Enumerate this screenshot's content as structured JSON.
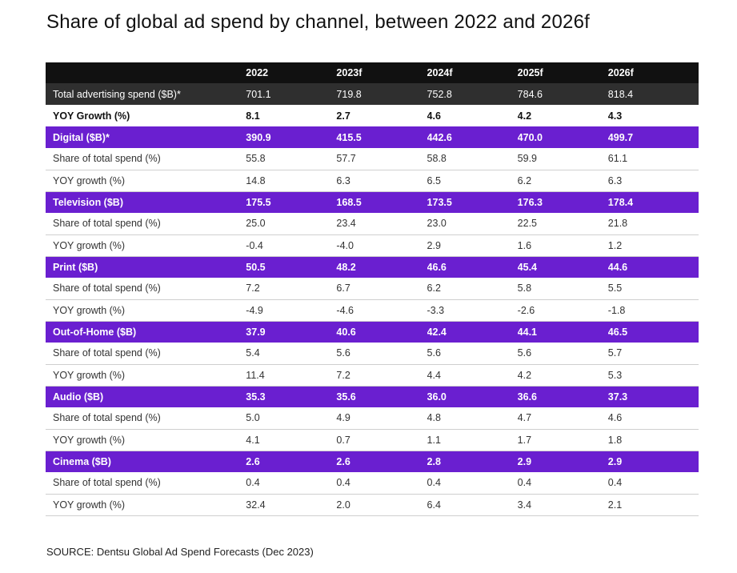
{
  "title": "Share of global ad spend by channel, between 2022 and 2026f",
  "source": "SOURCE: Dentsu Global Ad Spend Forecasts (Dec 2023)",
  "colors": {
    "header": "#111111",
    "total_row": "#2f2f2f",
    "channel_row": "#6a1fd0"
  },
  "chart_data": {
    "type": "table",
    "title": "Share of global ad spend by channel, between 2022 and 2026f",
    "columns": [
      "",
      "2022",
      "2023f",
      "2024f",
      "2025f",
      "2026f"
    ],
    "rows": [
      {
        "kind": "total",
        "label": "Total advertising spend ($B)*",
        "values": [
          "701.1",
          "719.8",
          "752.8",
          "784.6",
          "818.4"
        ]
      },
      {
        "kind": "yoy-total",
        "label": "YOY Growth (%)",
        "values": [
          "8.1",
          "2.7",
          "4.6",
          "4.2",
          "4.3"
        ]
      },
      {
        "kind": "channel",
        "label": "Digital ($B)*",
        "values": [
          "390.9",
          "415.5",
          "442.6",
          "470.0",
          "499.7"
        ]
      },
      {
        "kind": "sub",
        "label": "Share of total spend (%)",
        "values": [
          "55.8",
          "57.7",
          "58.8",
          "59.9",
          "61.1"
        ]
      },
      {
        "kind": "sub",
        "label": "YOY growth (%)",
        "values": [
          "14.8",
          "6.3",
          "6.5",
          "6.2",
          "6.3"
        ]
      },
      {
        "kind": "channel",
        "label": "Television ($B)",
        "values": [
          "175.5",
          "168.5",
          "173.5",
          "176.3",
          "178.4"
        ]
      },
      {
        "kind": "sub",
        "label": "Share of total spend (%)",
        "values": [
          "25.0",
          "23.4",
          "23.0",
          "22.5",
          "21.8"
        ]
      },
      {
        "kind": "sub",
        "label": "YOY growth (%)",
        "values": [
          "-0.4",
          "-4.0",
          "2.9",
          "1.6",
          "1.2"
        ]
      },
      {
        "kind": "channel",
        "label": "Print ($B)",
        "values": [
          "50.5",
          "48.2",
          "46.6",
          "45.4",
          "44.6"
        ]
      },
      {
        "kind": "sub",
        "label": "Share of total spend (%)",
        "values": [
          "7.2",
          "6.7",
          "6.2",
          "5.8",
          "5.5"
        ]
      },
      {
        "kind": "sub",
        "label": "YOY growth (%)",
        "values": [
          "-4.9",
          "-4.6",
          "-3.3",
          "-2.6",
          "-1.8"
        ]
      },
      {
        "kind": "channel",
        "label": "Out-of-Home ($B)",
        "values": [
          "37.9",
          "40.6",
          "42.4",
          "44.1",
          "46.5"
        ]
      },
      {
        "kind": "sub",
        "label": "Share of total spend (%)",
        "values": [
          "5.4",
          "5.6",
          "5.6",
          "5.6",
          "5.7"
        ]
      },
      {
        "kind": "sub",
        "label": "YOY growth (%)",
        "values": [
          "11.4",
          "7.2",
          "4.4",
          "4.2",
          "5.3"
        ]
      },
      {
        "kind": "channel",
        "label": "Audio ($B)",
        "values": [
          "35.3",
          "35.6",
          "36.0",
          "36.6",
          "37.3"
        ]
      },
      {
        "kind": "sub",
        "label": "Share of total spend (%)",
        "values": [
          "5.0",
          "4.9",
          "4.8",
          "4.7",
          "4.6"
        ]
      },
      {
        "kind": "sub",
        "label": "YOY growth (%)",
        "values": [
          "4.1",
          "0.7",
          "1.1",
          "1.7",
          "1.8"
        ]
      },
      {
        "kind": "channel",
        "label": "Cinema ($B)",
        "values": [
          "2.6",
          "2.6",
          "2.8",
          "2.9",
          "2.9"
        ]
      },
      {
        "kind": "sub",
        "label": "Share of total spend (%)",
        "values": [
          "0.4",
          "0.4",
          "0.4",
          "0.4",
          "0.4"
        ]
      },
      {
        "kind": "sub",
        "label": "YOY growth (%)",
        "values": [
          "32.4",
          "2.0",
          "6.4",
          "3.4",
          "2.1"
        ]
      }
    ]
  }
}
